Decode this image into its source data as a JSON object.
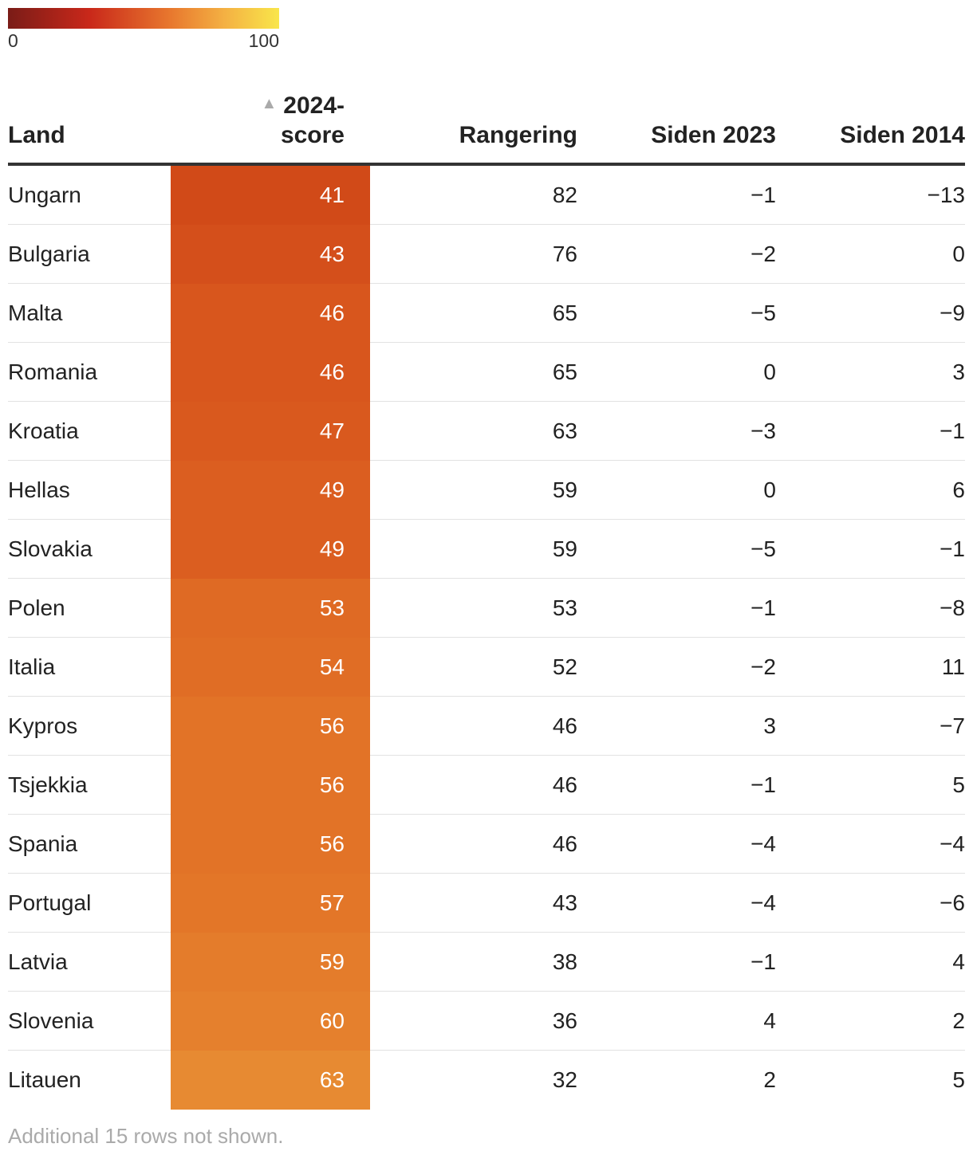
{
  "legend": {
    "min_label": "0",
    "max_label": "100",
    "min": 0,
    "max": 100
  },
  "chart_data": {
    "type": "table",
    "columns": [
      "Land",
      "2024-score",
      "Rangering",
      "Siden 2023",
      "Siden 2014"
    ],
    "sort": {
      "column": "2024-score",
      "direction": "ascending"
    },
    "rows": [
      {
        "land": "Ungarn",
        "score": "41",
        "rank": "82",
        "s23": "−1",
        "s14": "−13",
        "color": "#d14a18"
      },
      {
        "land": "Bulgaria",
        "score": "43",
        "rank": "76",
        "s23": "−2",
        "s14": "0",
        "color": "#d44f1b"
      },
      {
        "land": "Malta",
        "score": "46",
        "rank": "65",
        "s23": "−5",
        "s14": "−9",
        "color": "#d8561d"
      },
      {
        "land": "Romania",
        "score": "46",
        "rank": "65",
        "s23": "0",
        "s14": "3",
        "color": "#d8561d"
      },
      {
        "land": "Kroatia",
        "score": "47",
        "rank": "63",
        "s23": "−3",
        "s14": "−1",
        "color": "#d9591e"
      },
      {
        "land": "Hellas",
        "score": "49",
        "rank": "59",
        "s23": "0",
        "s14": "6",
        "color": "#db5e20"
      },
      {
        "land": "Slovakia",
        "score": "49",
        "rank": "59",
        "s23": "−5",
        "s14": "−1",
        "color": "#db5e20"
      },
      {
        "land": "Polen",
        "score": "53",
        "rank": "53",
        "s23": "−1",
        "s14": "−8",
        "color": "#df6a24"
      },
      {
        "land": "Italia",
        "score": "54",
        "rank": "52",
        "s23": "−2",
        "s14": "11",
        "color": "#e06d25"
      },
      {
        "land": "Kypros",
        "score": "56",
        "rank": "46",
        "s23": "3",
        "s14": "−7",
        "color": "#e27327"
      },
      {
        "land": "Tsjekkia",
        "score": "56",
        "rank": "46",
        "s23": "−1",
        "s14": "5",
        "color": "#e27327"
      },
      {
        "land": "Spania",
        "score": "56",
        "rank": "46",
        "s23": "−4",
        "s14": "−4",
        "color": "#e27327"
      },
      {
        "land": "Portugal",
        "score": "57",
        "rank": "43",
        "s23": "−4",
        "s14": "−6",
        "color": "#e37628"
      },
      {
        "land": "Latvia",
        "score": "59",
        "rank": "38",
        "s23": "−1",
        "s14": "4",
        "color": "#e47c2b"
      },
      {
        "land": "Slovenia",
        "score": "60",
        "rank": "36",
        "s23": "4",
        "s14": "2",
        "color": "#e5802d"
      },
      {
        "land": "Litauen",
        "score": "63",
        "rank": "32",
        "s23": "2",
        "s14": "5",
        "color": "#e78a32"
      }
    ]
  },
  "header": {
    "land": "Land",
    "score_line1": "2024-",
    "score_line2": "score",
    "rank": "Rangering",
    "s23": "Siden 2023",
    "s14": "Siden 2014",
    "sort_icon": "▲"
  },
  "footnote": "Additional 15 rows not shown."
}
